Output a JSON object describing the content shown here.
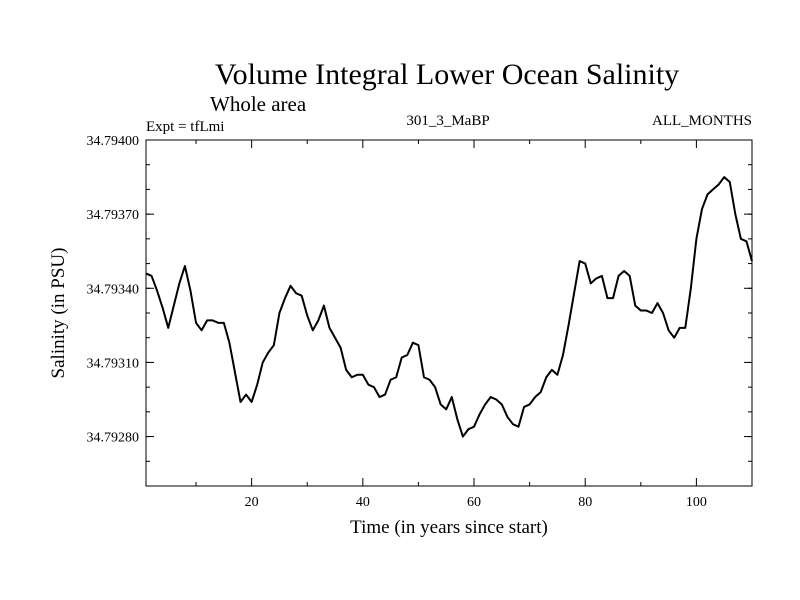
{
  "chart_data": {
    "type": "line",
    "title": "Volume Integral Lower Ocean Salinity",
    "subtitle": "Whole area",
    "expt_label": "Expt = tfLmi",
    "run_label": "301_3_MaBP",
    "months_label": "ALL_MONTHS",
    "xlabel": "Time (in years since start)",
    "ylabel": "Salinity (in PSU)",
    "xlim": [
      1,
      110
    ],
    "ylim": [
      34.7926,
      34.794
    ],
    "x_ticks": [
      20,
      40,
      60,
      80,
      100
    ],
    "y_ticks": [
      34.7928,
      34.7931,
      34.7934,
      34.7937,
      34.794
    ],
    "y_tick_labels": [
      "34.79280",
      "34.79310",
      "34.79340",
      "34.79370",
      "34.79400"
    ],
    "series": [
      {
        "name": "Salinity",
        "color": "#000000",
        "x": [
          1,
          2,
          3,
          4,
          5,
          6,
          7,
          8,
          9,
          10,
          11,
          12,
          13,
          14,
          15,
          16,
          17,
          18,
          19,
          20,
          21,
          22,
          23,
          24,
          25,
          26,
          27,
          28,
          29,
          30,
          31,
          32,
          33,
          34,
          35,
          36,
          37,
          38,
          39,
          40,
          41,
          42,
          43,
          44,
          45,
          46,
          47,
          48,
          49,
          50,
          51,
          52,
          53,
          54,
          55,
          56,
          57,
          58,
          59,
          60,
          61,
          62,
          63,
          64,
          65,
          66,
          67,
          68,
          69,
          70,
          71,
          72,
          73,
          74,
          75,
          76,
          77,
          78,
          79,
          80,
          81,
          82,
          83,
          84,
          85,
          86,
          87,
          88,
          89,
          90,
          91,
          92,
          93,
          94,
          95,
          96,
          97,
          98,
          99,
          100,
          101,
          102,
          103,
          104,
          105,
          106,
          107,
          108,
          109,
          110
        ],
        "values": [
          34.79346,
          34.79345,
          34.79339,
          34.79332,
          34.79324,
          34.79333,
          34.79342,
          34.79349,
          34.79339,
          34.79326,
          34.79323,
          34.79327,
          34.79327,
          34.79326,
          34.79326,
          34.79318,
          34.79306,
          34.79294,
          34.79297,
          34.79294,
          34.79301,
          34.7931,
          34.79314,
          34.79317,
          34.7933,
          34.79336,
          34.79341,
          34.79338,
          34.79337,
          34.79329,
          34.79323,
          34.79327,
          34.79333,
          34.79324,
          34.7932,
          34.79316,
          34.79307,
          34.79304,
          34.79305,
          34.79305,
          34.79301,
          34.793,
          34.79296,
          34.79297,
          34.79303,
          34.79304,
          34.79312,
          34.79313,
          34.79318,
          34.79317,
          34.79304,
          34.79303,
          34.793,
          34.79293,
          34.79291,
          34.79296,
          34.79287,
          34.7928,
          34.79283,
          34.79284,
          34.79289,
          34.79293,
          34.79296,
          34.79295,
          34.79293,
          34.79288,
          34.79285,
          34.79284,
          34.79292,
          34.79293,
          34.79296,
          34.79298,
          34.79304,
          34.79307,
          34.79305,
          34.79313,
          34.79325,
          34.79338,
          34.79351,
          34.7935,
          34.79342,
          34.79344,
          34.79345,
          34.79336,
          34.79336,
          34.79345,
          34.79347,
          34.79345,
          34.79333,
          34.79331,
          34.79331,
          34.7933,
          34.79334,
          34.7933,
          34.79323,
          34.7932,
          34.79324,
          34.79324,
          34.7934,
          34.7936,
          34.79372,
          34.79378,
          34.7938,
          34.79382,
          34.79385,
          34.79383,
          34.7937,
          34.7936,
          34.79359,
          34.79351
        ]
      }
    ]
  }
}
